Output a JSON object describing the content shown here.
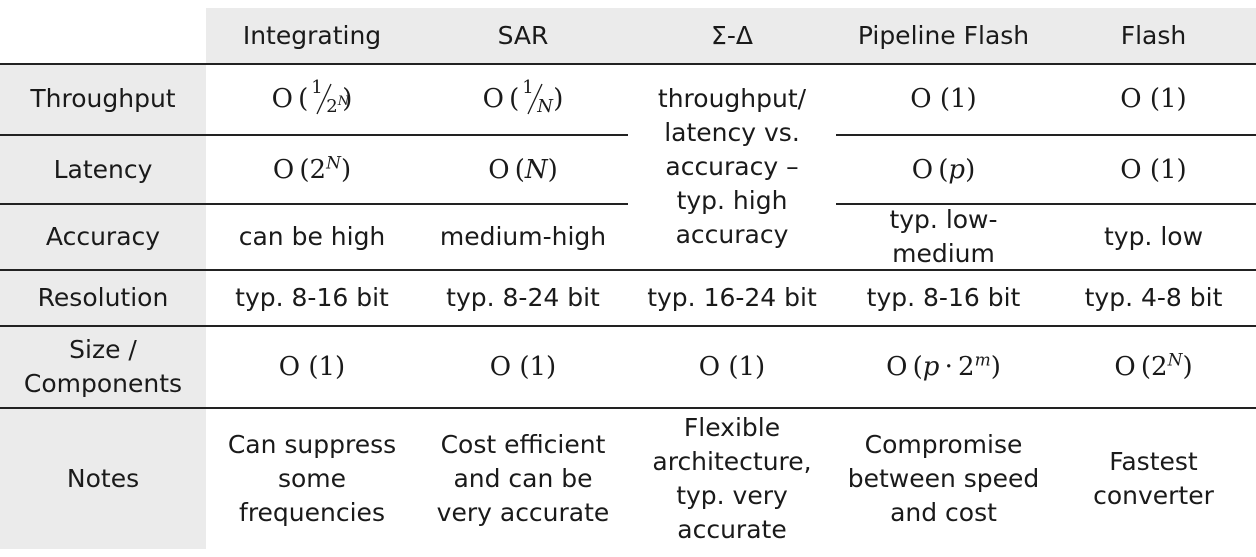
{
  "table": {
    "columns": [
      "Integrating",
      "SAR",
      "Σ-Δ",
      "Pipeline Flash",
      "Flash"
    ],
    "rows": {
      "throughput": "Throughput",
      "latency": "Latency",
      "accuracy": "Accuracy",
      "resolution": "Resolution",
      "size": "Size / Components",
      "notes": "Notes"
    },
    "throughput": {
      "integrating": "O (1/2^N)",
      "sar": "O (1/N)",
      "pipeline": "O (1)",
      "flash": "O (1)"
    },
    "latency": {
      "integrating": "O (2^N)",
      "sar": "O (N)",
      "pipeline": "O (p)",
      "flash": "O (1)"
    },
    "sigma_delta_merged": "throughput/ latency vs. accuracy – typ. high accuracy",
    "accuracy": {
      "integrating": "can be high",
      "sar": "medium-high",
      "pipeline": "typ. low-medium",
      "flash": "typ. low"
    },
    "resolution": {
      "integrating": "typ. 8-16 bit",
      "sar": "typ. 8-24 bit",
      "sigma_delta": "typ. 16-24 bit",
      "pipeline": "typ. 8-16 bit",
      "flash": "typ. 4-8 bit"
    },
    "size": {
      "integrating": "O (1)",
      "sar": "O (1)",
      "sigma_delta": "O (1)",
      "pipeline": "O (p · 2^m)",
      "flash": "O (2^N)"
    },
    "notes": {
      "integrating": "Can suppress some frequencies",
      "sar": "Cost efficient and can be very accurate",
      "sigma_delta": "Flexible architecture, typ. very accurate",
      "pipeline": "Compromise between speed and cost",
      "flash": "Fastest converter"
    }
  }
}
